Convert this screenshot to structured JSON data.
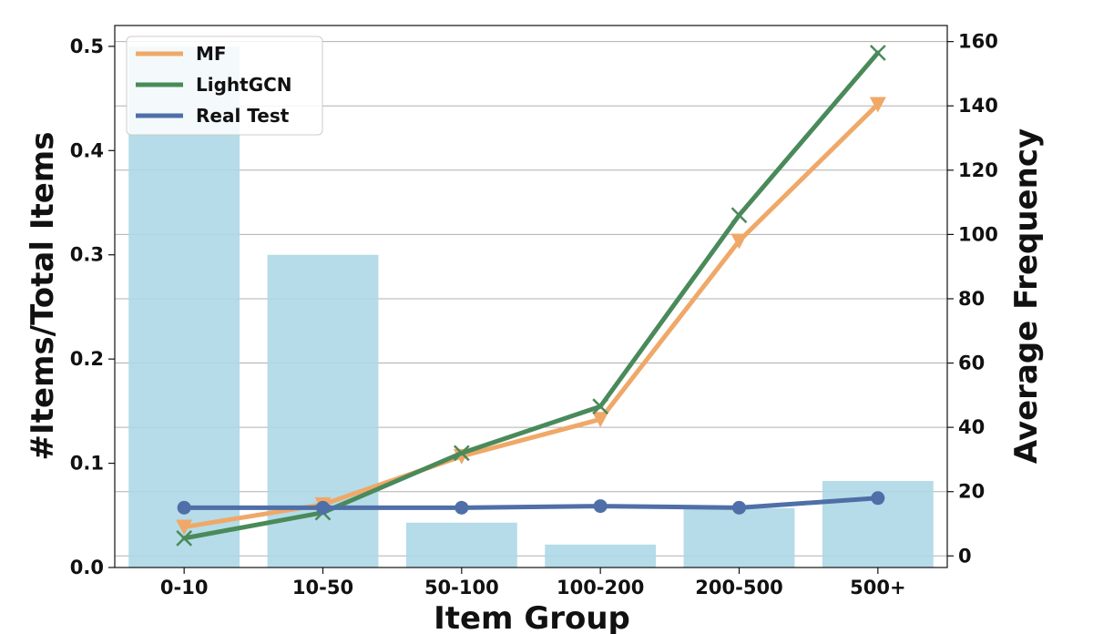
{
  "chart_data": {
    "type": "bar",
    "xlabel": "Item Group",
    "ylabel": "#Items/Total Items",
    "y2label": "Average Frequency",
    "categories": [
      "0-10",
      "10-50",
      "50-100",
      "100-200",
      "200-500",
      "500+"
    ],
    "ylim": [
      0,
      0.52
    ],
    "y2lim": [
      -3.6,
      165
    ],
    "yticks": [
      0.0,
      0.1,
      0.2,
      0.3,
      0.4,
      0.5
    ],
    "yticklabels": [
      "0.0",
      "0.1",
      "0.2",
      "0.3",
      "0.4",
      "0.5"
    ],
    "y2ticks": [
      0,
      20,
      40,
      60,
      80,
      100,
      120,
      140,
      160
    ],
    "y2ticklabels": [
      "0",
      "20",
      "40",
      "60",
      "80",
      "100",
      "120",
      "140",
      "160"
    ],
    "grid": "horizontal, right axis",
    "legend_position": "top-left",
    "bars": {
      "axis": "left",
      "color": "#add8e6",
      "values": [
        0.5,
        0.3,
        0.043,
        0.022,
        0.057,
        0.083
      ]
    },
    "series": [
      {
        "name": "MF",
        "axis": "right",
        "color": "#f0a868",
        "marker": "triangle-down",
        "values": [
          9.0,
          16.0,
          31.0,
          42.5,
          98.0,
          140.5
        ]
      },
      {
        "name": "LightGCN",
        "axis": "right",
        "color": "#4a8a5a",
        "marker": "x",
        "values": [
          5.5,
          13.5,
          32.0,
          46.5,
          106.0,
          156.5
        ]
      },
      {
        "name": "Real Test",
        "axis": "right",
        "color": "#4f6fa8",
        "marker": "circle",
        "values": [
          15.0,
          15.0,
          15.0,
          15.5,
          15.0,
          18.0
        ]
      }
    ]
  }
}
